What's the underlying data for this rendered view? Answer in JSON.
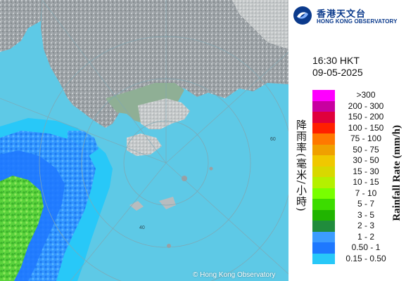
{
  "header": {
    "logo_chinese": "香港天文台",
    "logo_english": "HONG KONG OBSERVATORY"
  },
  "time": "16:30 HKT",
  "date": "09-05-2025",
  "legend": {
    "title_en": "Rainfall Rate (mm/h)",
    "title_cn": "降雨率(毫米/小時)",
    "bins": [
      {
        "label": ">300",
        "color": "#ff00ff"
      },
      {
        "label": "200 - 300",
        "color": "#c800a0"
      },
      {
        "label": "150 - 200",
        "color": "#e0003c"
      },
      {
        "label": "100 - 150",
        "color": "#ff2000"
      },
      {
        "label": "75 - 100",
        "color": "#ff7800"
      },
      {
        "label": "50 - 75",
        "color": "#f0a000"
      },
      {
        "label": "30 - 50",
        "color": "#f0c800"
      },
      {
        "label": "15 - 30",
        "color": "#d8d800"
      },
      {
        "label": "10 - 15",
        "color": "#b4f000"
      },
      {
        "label": "7 - 10",
        "color": "#78ff00"
      },
      {
        "label": "5 - 7",
        "color": "#3cdc00"
      },
      {
        "label": "3 - 5",
        "color": "#20b400"
      },
      {
        "label": "2 - 3",
        "color": "#208c3c"
      },
      {
        "label": "1 - 2",
        "color": "#3c9cff"
      },
      {
        "label": "0.50 - 1",
        "color": "#1e78ff"
      },
      {
        "label": "0.15 - 0.50",
        "color": "#28c8f8"
      }
    ]
  },
  "map": {
    "range_ring_labels": [
      "40",
      "60"
    ],
    "copyright": "© Hong Kong Observatory"
  }
}
